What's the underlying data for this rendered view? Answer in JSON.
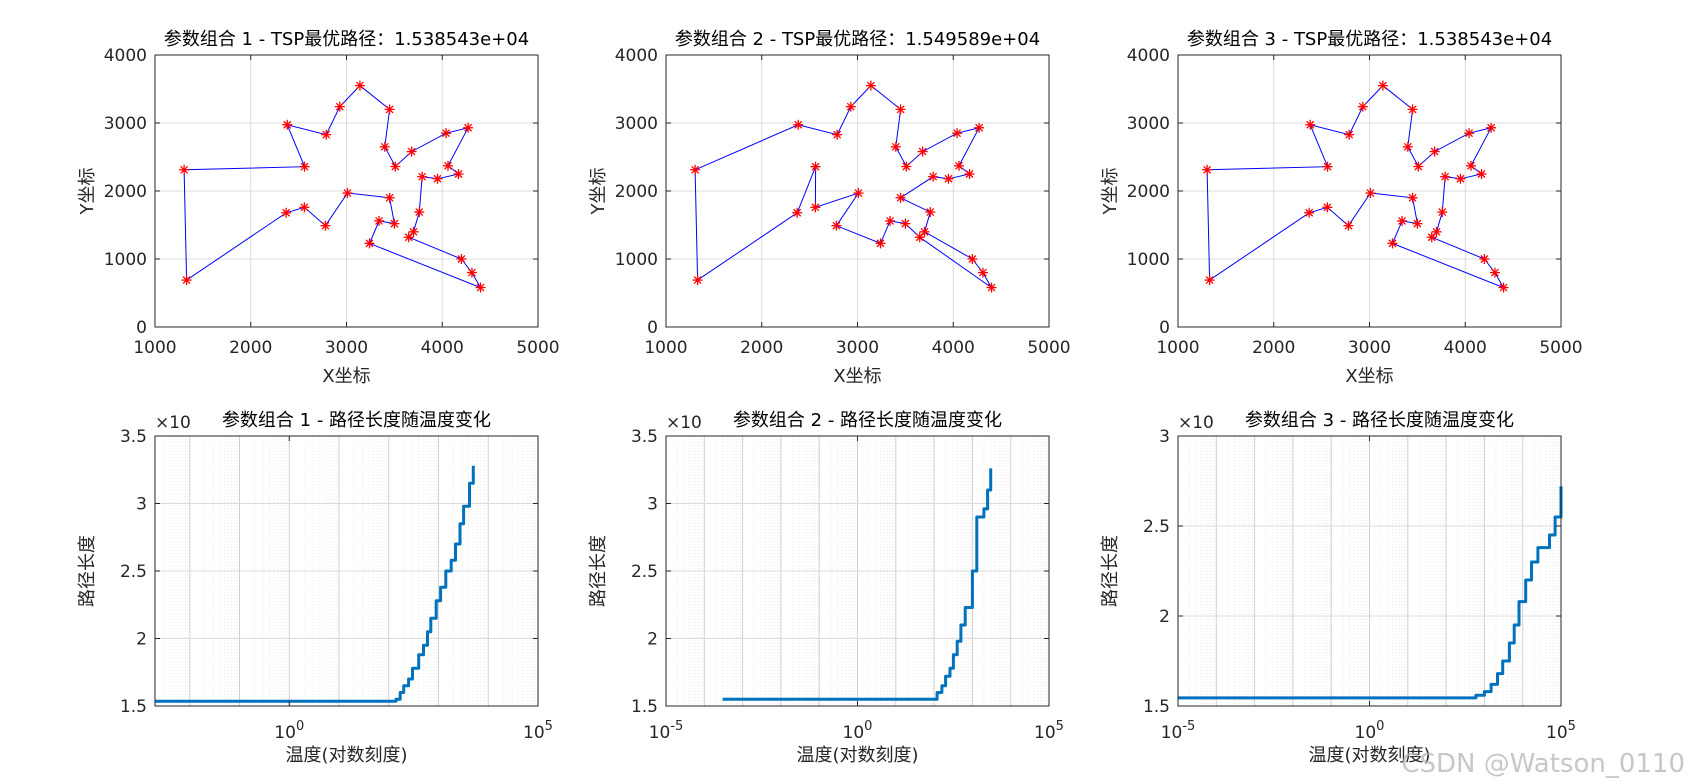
{
  "watermark": "CSDN @Watson_0110",
  "chart_data": [
    {
      "type": "line",
      "title": "参数组合 1 - TSP最优路径：1.538543e+04",
      "xlabel": "X坐标",
      "ylabel": "Y坐标",
      "xlim": [
        1000,
        5000
      ],
      "ylim": [
        0,
        4000
      ],
      "xticks": [
        1000,
        2000,
        3000,
        4000,
        5000
      ],
      "yticks": [
        0,
        1000,
        2000,
        3000,
        4000
      ],
      "grid": true,
      "marker_color": "#ff0000",
      "line_color": "#0000ff",
      "route": [
        [
          1304,
          2312
        ],
        [
          2562,
          2358
        ],
        [
          2381,
          2974
        ],
        [
          2788,
          2828
        ],
        [
          2930,
          3240
        ],
        [
          3140,
          3550
        ],
        [
          3450,
          3200
        ],
        [
          3400,
          2650
        ],
        [
          3510,
          2360
        ],
        [
          3680,
          2580
        ],
        [
          4040,
          2850
        ],
        [
          4270,
          2930
        ],
        [
          4060,
          2370
        ],
        [
          4170,
          2250
        ],
        [
          3950,
          2180
        ],
        [
          3790,
          2210
        ],
        [
          3760,
          1690
        ],
        [
          3700,
          1400
        ],
        [
          3650,
          1320
        ],
        [
          4200,
          1000
        ],
        [
          4310,
          800
        ],
        [
          4400,
          580
        ],
        [
          3240,
          1230
        ],
        [
          3340,
          1560
        ],
        [
          3500,
          1520
        ],
        [
          3450,
          1900
        ],
        [
          3010,
          1970
        ],
        [
          2780,
          1490
        ],
        [
          2560,
          1760
        ],
        [
          2370,
          1680
        ],
        [
          1330,
          690
        ],
        [
          1304,
          2312
        ]
      ]
    },
    {
      "type": "line",
      "title": "参数组合 2 - TSP最优路径：1.549589e+04",
      "xlabel": "X坐标",
      "ylabel": "Y坐标",
      "xlim": [
        1000,
        5000
      ],
      "ylim": [
        0,
        4000
      ],
      "xticks": [
        1000,
        2000,
        3000,
        4000,
        5000
      ],
      "yticks": [
        0,
        1000,
        2000,
        3000,
        4000
      ],
      "grid": true,
      "marker_color": "#ff0000",
      "line_color": "#0000ff",
      "route": [
        [
          1304,
          2312
        ],
        [
          2381,
          2974
        ],
        [
          2788,
          2828
        ],
        [
          2930,
          3240
        ],
        [
          3140,
          3550
        ],
        [
          3450,
          3200
        ],
        [
          3400,
          2650
        ],
        [
          3510,
          2360
        ],
        [
          3680,
          2580
        ],
        [
          4040,
          2850
        ],
        [
          4270,
          2930
        ],
        [
          4060,
          2370
        ],
        [
          4170,
          2250
        ],
        [
          3950,
          2180
        ],
        [
          3790,
          2210
        ],
        [
          3450,
          1900
        ],
        [
          3760,
          1690
        ],
        [
          3700,
          1400
        ],
        [
          4200,
          1000
        ],
        [
          4310,
          800
        ],
        [
          4400,
          580
        ],
        [
          3650,
          1320
        ],
        [
          3500,
          1520
        ],
        [
          3340,
          1560
        ],
        [
          3240,
          1230
        ],
        [
          2780,
          1490
        ],
        [
          3010,
          1970
        ],
        [
          2560,
          1760
        ],
        [
          2562,
          2358
        ],
        [
          2370,
          1680
        ],
        [
          1330,
          690
        ],
        [
          1304,
          2312
        ]
      ]
    },
    {
      "type": "line",
      "title": "参数组合 3 - TSP最优路径：1.538543e+04",
      "xlabel": "X坐标",
      "ylabel": "Y坐标",
      "xlim": [
        1000,
        5000
      ],
      "ylim": [
        0,
        4000
      ],
      "xticks": [
        1000,
        2000,
        3000,
        4000,
        5000
      ],
      "yticks": [
        0,
        1000,
        2000,
        3000,
        4000
      ],
      "grid": true,
      "marker_color": "#ff0000",
      "line_color": "#0000ff",
      "route": [
        [
          1304,
          2312
        ],
        [
          2562,
          2358
        ],
        [
          2381,
          2974
        ],
        [
          2788,
          2828
        ],
        [
          2930,
          3240
        ],
        [
          3140,
          3550
        ],
        [
          3450,
          3200
        ],
        [
          3400,
          2650
        ],
        [
          3510,
          2360
        ],
        [
          3680,
          2580
        ],
        [
          4040,
          2850
        ],
        [
          4270,
          2930
        ],
        [
          4060,
          2370
        ],
        [
          4170,
          2250
        ],
        [
          3950,
          2180
        ],
        [
          3790,
          2210
        ],
        [
          3760,
          1690
        ],
        [
          3700,
          1400
        ],
        [
          3650,
          1320
        ],
        [
          4200,
          1000
        ],
        [
          4310,
          800
        ],
        [
          4400,
          580
        ],
        [
          3240,
          1230
        ],
        [
          3340,
          1560
        ],
        [
          3500,
          1520
        ],
        [
          3450,
          1900
        ],
        [
          3010,
          1970
        ],
        [
          2780,
          1490
        ],
        [
          2560,
          1760
        ],
        [
          2370,
          1680
        ],
        [
          1330,
          690
        ],
        [
          1304,
          2312
        ]
      ]
    },
    {
      "type": "line",
      "title": "参数组合 1 - 路径长度随温度变化",
      "xlabel": "温度(对数刻度)",
      "ylabel": "路径长度",
      "y_multiplier": "×10",
      "xscale": "log",
      "xlim": [
        0.002,
        100000
      ],
      "ylim": [
        1.5,
        3.5
      ],
      "xticks": [
        1,
        100000
      ],
      "xtick_labels": [
        [
          "10",
          "0"
        ],
        [
          "10",
          "5"
        ]
      ],
      "yticks": [
        1.5,
        2,
        2.5,
        3,
        3.5
      ],
      "ytick_labels": [
        "1.5",
        "2",
        "2.5",
        "3",
        "3.5"
      ],
      "grid": true,
      "line_color": "#0072bd",
      "x": [
        0.002,
        100,
        140,
        170,
        200,
        250,
        300,
        400,
        500,
        600,
        700,
        900,
        1100,
        1400,
        1800,
        2200,
        2700,
        3200,
        3600,
        4200,
        5000
      ],
      "y": [
        1.535,
        1.535,
        1.55,
        1.6,
        1.65,
        1.7,
        1.78,
        1.88,
        1.95,
        2.05,
        2.15,
        2.28,
        2.38,
        2.5,
        2.58,
        2.7,
        2.85,
        2.98,
        2.98,
        3.15,
        3.28
      ]
    },
    {
      "type": "line",
      "title": "参数组合 2 - 路径长度随温度变化",
      "xlabel": "温度(对数刻度)",
      "ylabel": "路径长度",
      "y_multiplier": "×10",
      "xscale": "log",
      "xlim": [
        1e-05,
        100000
      ],
      "ylim": [
        1.5,
        3.5
      ],
      "xticks": [
        1e-05,
        1,
        100000
      ],
      "xtick_labels": [
        [
          "10",
          "-5"
        ],
        [
          "10",
          "0"
        ],
        [
          "10",
          "5"
        ]
      ],
      "yticks": [
        1.5,
        2,
        2.5,
        3,
        3.5
      ],
      "ytick_labels": [
        "1.5",
        "2",
        "2.5",
        "3",
        "3.5"
      ],
      "grid": true,
      "line_color": "#0072bd",
      "x": [
        0.0003,
        80,
        120,
        160,
        200,
        260,
        320,
        400,
        500,
        650,
        800,
        1000,
        1300,
        1600,
        2000,
        2500,
        3000
      ],
      "y": [
        1.55,
        1.55,
        1.6,
        1.65,
        1.72,
        1.78,
        1.88,
        1.98,
        2.1,
        2.23,
        2.23,
        2.5,
        2.9,
        2.9,
        2.96,
        3.1,
        3.26
      ]
    },
    {
      "type": "line",
      "title": "参数组合 3 - 路径长度随温度变化",
      "xlabel": "温度(对数刻度)",
      "ylabel": "路径长度",
      "y_multiplier": "×10",
      "xscale": "log",
      "xlim": [
        1e-05,
        100000
      ],
      "ylim": [
        1.5,
        3
      ],
      "xticks": [
        1e-05,
        1,
        100000
      ],
      "xtick_labels": [
        [
          "10",
          "-5"
        ],
        [
          "10",
          "0"
        ],
        [
          "10",
          "5"
        ]
      ],
      "yticks": [
        1.5,
        2,
        2.5,
        3
      ],
      "ytick_labels": [
        "1.5",
        "2",
        "2.5",
        "3"
      ],
      "grid": true,
      "line_color": "#0072bd",
      "x": [
        1e-05,
        300,
        600,
        1000,
        1500,
        2200,
        3000,
        4500,
        6000,
        8000,
        12000,
        17000,
        25000,
        35000,
        50000,
        70000,
        100000
      ],
      "y": [
        1.545,
        1.545,
        1.56,
        1.58,
        1.62,
        1.68,
        1.75,
        1.85,
        1.95,
        2.08,
        2.2,
        2.3,
        2.38,
        2.38,
        2.45,
        2.55,
        2.72
      ]
    }
  ]
}
